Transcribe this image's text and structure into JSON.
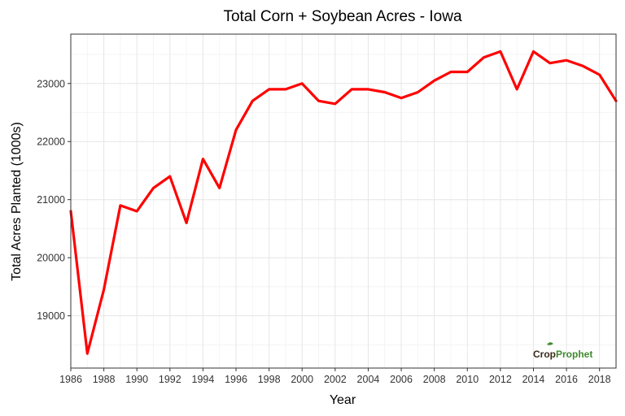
{
  "chart_data": {
    "type": "line",
    "title": "Total Corn + Soybean Acres - Iowa",
    "xlabel": "Year",
    "ylabel": "Total Acres Planted (1000s)",
    "xlim": [
      1986,
      2019
    ],
    "ylim": [
      18100,
      23850
    ],
    "x_ticks": [
      1986,
      1988,
      1990,
      1992,
      1994,
      1996,
      1998,
      2000,
      2002,
      2004,
      2006,
      2008,
      2010,
      2012,
      2014,
      2016,
      2018
    ],
    "y_ticks": [
      19000,
      20000,
      21000,
      22000,
      23000
    ],
    "grid": true,
    "series": [
      {
        "color": "#ff0000",
        "x": [
          1986,
          1987,
          1988,
          1989,
          1990,
          1991,
          1992,
          1993,
          1994,
          1995,
          1996,
          1997,
          1998,
          1999,
          2000,
          2001,
          2002,
          2003,
          2004,
          2005,
          2006,
          2007,
          2008,
          2009,
          2010,
          2011,
          2012,
          2013,
          2014,
          2015,
          2016,
          2017,
          2018,
          2019
        ],
        "y": [
          20800,
          18350,
          19450,
          20900,
          20800,
          21200,
          21400,
          20600,
          21700,
          21200,
          22200,
          22700,
          22900,
          22900,
          23000,
          22700,
          22650,
          22900,
          22900,
          22850,
          22750,
          22850,
          23050,
          23200,
          23200,
          23450,
          23550,
          22900,
          23550,
          23350,
          23400,
          23300,
          23150,
          22700
        ]
      }
    ]
  },
  "brand": {
    "part1": "Crop",
    "part2": "Prophet"
  }
}
